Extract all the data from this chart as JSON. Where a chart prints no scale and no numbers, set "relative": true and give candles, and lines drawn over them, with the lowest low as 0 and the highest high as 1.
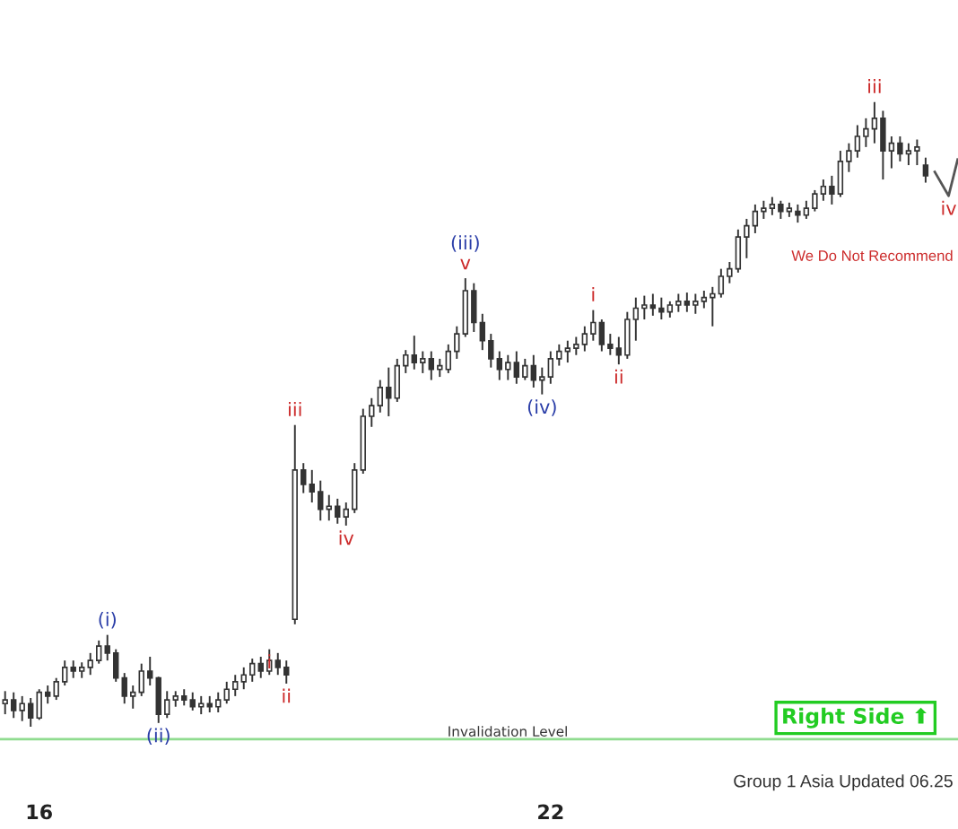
{
  "chart_data": {
    "type": "candlestick",
    "relative": true,
    "color": "#333333",
    "x": [
      15.6,
      15.7,
      15.8,
      15.9,
      16.0,
      16.1,
      16.2,
      16.3,
      16.4,
      16.5,
      16.6,
      16.7,
      16.8,
      16.9,
      17.0,
      17.1,
      17.2,
      17.3,
      17.4,
      17.5,
      17.6,
      17.7,
      17.8,
      17.9,
      18.0,
      18.1,
      18.2,
      18.3,
      18.4,
      18.5,
      18.6,
      18.7,
      18.8,
      18.9,
      19.0,
      19.1,
      19.2,
      19.3,
      19.4,
      19.5,
      19.6,
      19.7,
      19.8,
      19.9,
      20.0,
      20.1,
      20.2,
      20.3,
      20.4,
      20.5,
      20.6,
      20.7,
      20.8,
      20.9,
      21.0,
      21.1,
      21.2,
      21.3,
      21.4,
      21.5,
      21.6,
      21.7,
      21.8,
      21.9,
      22.0,
      22.1,
      22.2,
      22.3,
      22.4,
      22.5,
      22.6,
      22.7,
      22.8,
      22.9,
      23.0,
      23.1,
      23.2,
      23.3,
      23.4,
      23.5,
      23.6,
      23.7,
      23.8,
      23.9,
      24.0,
      24.1,
      24.2,
      24.3,
      24.4,
      24.5,
      24.6,
      24.7,
      24.8,
      24.9,
      25.0,
      25.1,
      25.2,
      25.3,
      25.4,
      25.5,
      25.6,
      25.7,
      25.8,
      25.9,
      26.0,
      26.1,
      26.2,
      26.3,
      26.4
    ],
    "ohlc": [
      [
        0.037,
        0.057,
        0.02,
        0.043
      ],
      [
        0.043,
        0.055,
        0.014,
        0.026
      ],
      [
        0.026,
        0.049,
        0.009,
        0.037
      ],
      [
        0.037,
        0.046,
        0,
        0.014
      ],
      [
        0.014,
        0.06,
        0.011,
        0.055
      ],
      [
        0.055,
        0.066,
        0.037,
        0.049
      ],
      [
        0.049,
        0.078,
        0.043,
        0.072
      ],
      [
        0.072,
        0.106,
        0.066,
        0.095
      ],
      [
        0.095,
        0.106,
        0.078,
        0.089
      ],
      [
        0.089,
        0.103,
        0.078,
        0.095
      ],
      [
        0.095,
        0.118,
        0.083,
        0.106
      ],
      [
        0.106,
        0.138,
        0.101,
        0.129
      ],
      [
        0.129,
        0.147,
        0.106,
        0.118
      ],
      [
        0.118,
        0.124,
        0.072,
        0.078
      ],
      [
        0.078,
        0.086,
        0.037,
        0.049
      ],
      [
        0.049,
        0.066,
        0.029,
        0.055
      ],
      [
        0.055,
        0.101,
        0.049,
        0.089
      ],
      [
        0.089,
        0.112,
        0.066,
        0.078
      ],
      [
        0.078,
        0.08,
        0.006,
        0.02
      ],
      [
        0.02,
        0.057,
        0.014,
        0.043
      ],
      [
        0.043,
        0.057,
        0.032,
        0.049
      ],
      [
        0.049,
        0.06,
        0.034,
        0.043
      ],
      [
        0.043,
        0.055,
        0.026,
        0.032
      ],
      [
        0.032,
        0.049,
        0.02,
        0.037
      ],
      [
        0.037,
        0.049,
        0.023,
        0.032
      ],
      [
        0.032,
        0.055,
        0.023,
        0.043
      ],
      [
        0.043,
        0.072,
        0.037,
        0.06
      ],
      [
        0.06,
        0.083,
        0.049,
        0.072
      ],
      [
        0.072,
        0.095,
        0.06,
        0.083
      ],
      [
        0.083,
        0.109,
        0.072,
        0.101
      ],
      [
        0.101,
        0.112,
        0.078,
        0.089
      ],
      [
        0.089,
        0.124,
        0.083,
        0.106
      ],
      [
        0.106,
        0.118,
        0.083,
        0.095
      ],
      [
        0.095,
        0.106,
        0.069,
        0.083
      ],
      [
        0.172,
        0.483,
        0.164,
        0.411
      ],
      [
        0.411,
        0.422,
        0.374,
        0.388
      ],
      [
        0.388,
        0.411,
        0.359,
        0.376
      ],
      [
        0.376,
        0.394,
        0.33,
        0.348
      ],
      [
        0.348,
        0.371,
        0.33,
        0.353
      ],
      [
        0.353,
        0.365,
        0.325,
        0.336
      ],
      [
        0.336,
        0.359,
        0.322,
        0.348
      ],
      [
        0.348,
        0.422,
        0.342,
        0.411
      ],
      [
        0.411,
        0.509,
        0.405,
        0.497
      ],
      [
        0.497,
        0.526,
        0.48,
        0.514
      ],
      [
        0.514,
        0.555,
        0.503,
        0.543
      ],
      [
        0.543,
        0.575,
        0.497,
        0.526
      ],
      [
        0.526,
        0.589,
        0.52,
        0.578
      ],
      [
        0.578,
        0.603,
        0.566,
        0.595
      ],
      [
        0.595,
        0.626,
        0.572,
        0.583
      ],
      [
        0.583,
        0.601,
        0.566,
        0.589
      ],
      [
        0.589,
        0.601,
        0.555,
        0.572
      ],
      [
        0.572,
        0.589,
        0.56,
        0.578
      ],
      [
        0.572,
        0.612,
        0.566,
        0.601
      ],
      [
        0.601,
        0.641,
        0.589,
        0.629
      ],
      [
        0.629,
        0.718,
        0.624,
        0.698
      ],
      [
        0.698,
        0.71,
        0.632,
        0.647
      ],
      [
        0.647,
        0.661,
        0.603,
        0.618
      ],
      [
        0.618,
        0.629,
        0.575,
        0.589
      ],
      [
        0.589,
        0.601,
        0.555,
        0.572
      ],
      [
        0.572,
        0.595,
        0.555,
        0.583
      ],
      [
        0.583,
        0.601,
        0.549,
        0.56
      ],
      [
        0.56,
        0.589,
        0.555,
        0.578
      ],
      [
        0.578,
        0.595,
        0.543,
        0.555
      ],
      [
        0.555,
        0.575,
        0.532,
        0.56
      ],
      [
        0.56,
        0.601,
        0.549,
        0.589
      ],
      [
        0.589,
        0.612,
        0.578,
        0.601
      ],
      [
        0.601,
        0.618,
        0.583,
        0.606
      ],
      [
        0.606,
        0.624,
        0.595,
        0.612
      ],
      [
        0.612,
        0.641,
        0.601,
        0.629
      ],
      [
        0.629,
        0.667,
        0.618,
        0.647
      ],
      [
        0.647,
        0.652,
        0.601,
        0.612
      ],
      [
        0.612,
        0.629,
        0.595,
        0.606
      ],
      [
        0.606,
        0.624,
        0.58,
        0.595
      ],
      [
        0.595,
        0.664,
        0.589,
        0.652
      ],
      [
        0.652,
        0.687,
        0.618,
        0.67
      ],
      [
        0.67,
        0.69,
        0.652,
        0.675
      ],
      [
        0.675,
        0.693,
        0.658,
        0.67
      ],
      [
        0.67,
        0.687,
        0.652,
        0.664
      ],
      [
        0.664,
        0.681,
        0.655,
        0.675
      ],
      [
        0.675,
        0.693,
        0.664,
        0.681
      ],
      [
        0.681,
        0.695,
        0.664,
        0.675
      ],
      [
        0.675,
        0.693,
        0.661,
        0.681
      ],
      [
        0.681,
        0.698,
        0.67,
        0.687
      ],
      [
        0.687,
        0.704,
        0.641,
        0.693
      ],
      [
        0.693,
        0.733,
        0.687,
        0.721
      ],
      [
        0.721,
        0.744,
        0.71,
        0.733
      ],
      [
        0.733,
        0.796,
        0.727,
        0.784
      ],
      [
        0.784,
        0.813,
        0.75,
        0.802
      ],
      [
        0.802,
        0.836,
        0.79,
        0.825
      ],
      [
        0.825,
        0.842,
        0.813,
        0.83
      ],
      [
        0.83,
        0.848,
        0.819,
        0.836
      ],
      [
        0.836,
        0.842,
        0.813,
        0.825
      ],
      [
        0.825,
        0.839,
        0.816,
        0.83
      ],
      [
        0.825,
        0.836,
        0.807,
        0.819
      ],
      [
        0.819,
        0.842,
        0.813,
        0.83
      ],
      [
        0.83,
        0.859,
        0.825,
        0.853
      ],
      [
        0.853,
        0.876,
        0.842,
        0.865
      ],
      [
        0.865,
        0.882,
        0.836,
        0.853
      ],
      [
        0.853,
        0.922,
        0.848,
        0.905
      ],
      [
        0.905,
        0.934,
        0.888,
        0.922
      ],
      [
        0.922,
        0.963,
        0.911,
        0.945
      ],
      [
        0.945,
        0.974,
        0.928,
        0.957
      ],
      [
        0.957,
        1.0,
        0.934,
        0.974
      ],
      [
        0.974,
        0.986,
        0.876,
        0.922
      ],
      [
        0.922,
        0.945,
        0.894,
        0.934
      ],
      [
        0.934,
        0.945,
        0.905,
        0.917
      ],
      [
        0.917,
        0.934,
        0.899,
        0.922
      ],
      [
        0.922,
        0.94,
        0.899,
        0.928
      ],
      [
        0.899,
        0.911,
        0.871,
        0.882
      ]
    ],
    "series": [
      {
        "type": "line",
        "x": [
          26.5,
          26.67,
          26.78
        ],
        "values": [
          0.89,
          0.85,
          0.91
        ],
        "color": "#555555"
      }
    ],
    "xlim": [
      15.54,
      26.78
    ],
    "xticks": [
      16,
      22
    ],
    "tick_labels": "x",
    "ref_lines": [
      {
        "axis": "y",
        "value": -0.02,
        "label": "Invalidation Level",
        "color": "#8fdc8f"
      }
    ],
    "annotations": [
      {
        "text": "(i)",
        "x": 16.8,
        "y": 0.147
      },
      {
        "text": "(ii)",
        "x": 17.4,
        "y": 0.006
      },
      {
        "text": "i",
        "x": 18.7,
        "y": 0.124
      },
      {
        "text": "ii",
        "x": 18.9,
        "y": 0.069
      },
      {
        "text": "iii",
        "x": 19.0,
        "y": 0.483
      },
      {
        "text": "iv",
        "x": 19.6,
        "y": 0.322
      },
      {
        "text": "v",
        "x": 21.0,
        "y": 0.718
      },
      {
        "text": "(iii)",
        "x": 21.0,
        "y": 0.718
      },
      {
        "text": "(iv)",
        "x": 21.9,
        "y": 0.532
      },
      {
        "text": "i",
        "x": 22.5,
        "y": 0.667
      },
      {
        "text": "ii",
        "x": 22.8,
        "y": 0.58
      },
      {
        "text": "iii",
        "x": 25.8,
        "y": 1.0
      },
      {
        "text": "iv",
        "x": 26.67,
        "y": 0.85
      },
      "We Do Not Recommend",
      "Right Side ⬆",
      "Group 1 Asia Updated 06.25"
    ]
  }
}
